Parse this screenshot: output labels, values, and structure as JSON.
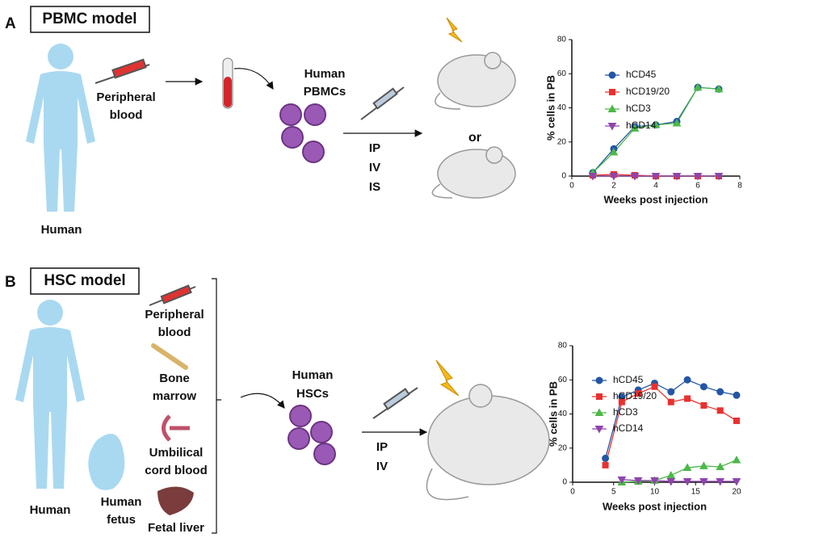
{
  "panel_a": {
    "letter": "A",
    "title": "PBMC model",
    "source": [
      "Peripheral",
      "blood"
    ],
    "donor": "Human",
    "cells": [
      "Human",
      "PBMCs"
    ],
    "routes": [
      "IP",
      "IV",
      "IS"
    ],
    "or": "or"
  },
  "panel_b": {
    "letter": "B",
    "title": "HSC model",
    "sources": [
      [
        "Peripheral",
        "blood"
      ],
      [
        "Bone",
        "marrow"
      ],
      [
        "Umbilical",
        "cord blood"
      ],
      [
        "Fetal liver"
      ]
    ],
    "donor": "Human",
    "fetus": [
      "Human",
      "fetus"
    ],
    "cells": [
      "Human",
      "HSCs"
    ],
    "routes": [
      "IP",
      "IV"
    ]
  },
  "chart_data": [
    {
      "type": "line",
      "xlabel": "Weeks post injection",
      "ylabel": "% cells in PB",
      "x": [
        1,
        2,
        3,
        4,
        5,
        6,
        7
      ],
      "xlim": [
        0,
        8
      ],
      "xticks": [
        0,
        2,
        4,
        6,
        8
      ],
      "ylim": [
        0,
        80
      ],
      "yticks": [
        0,
        20,
        40,
        60,
        80
      ],
      "series": [
        {
          "name": "hCD45",
          "color": "#2456a4",
          "marker": "circle",
          "values": [
            2,
            16,
            29,
            30,
            32,
            52,
            51
          ]
        },
        {
          "name": "hCD19/20",
          "color": "#e8312f",
          "marker": "square",
          "values": [
            0.5,
            1,
            0.5,
            0,
            0,
            0,
            0
          ]
        },
        {
          "name": "hCD3",
          "color": "#4cb848",
          "marker": "triangle",
          "values": [
            2,
            14,
            28,
            30,
            31,
            52,
            51
          ]
        },
        {
          "name": "hCD14",
          "color": "#8e44ad",
          "marker": "triangle-down",
          "values": [
            0,
            0,
            0,
            0,
            0,
            0,
            0
          ]
        }
      ]
    },
    {
      "type": "line",
      "xlabel": "Weeks post injection",
      "ylabel": "% cells in PB",
      "x": [
        4,
        6,
        8,
        10,
        12,
        14,
        16,
        18,
        20
      ],
      "xlim": [
        0,
        20
      ],
      "xticks": [
        0,
        5,
        10,
        15,
        20
      ],
      "ylim": [
        0,
        80
      ],
      "yticks": [
        0,
        20,
        40,
        60,
        80
      ],
      "series": [
        {
          "name": "hCD45",
          "color": "#2456a4",
          "marker": "circle",
          "values": [
            14,
            50,
            54,
            58,
            53,
            60,
            56,
            53,
            51
          ]
        },
        {
          "name": "hCD19/20",
          "color": "#e8312f",
          "marker": "square",
          "values": [
            10,
            47,
            52,
            56,
            47,
            49,
            45,
            42,
            36
          ]
        },
        {
          "name": "hCD3",
          "color": "#4cb848",
          "marker": "triangle",
          "values": [
            null,
            0,
            0.5,
            1,
            4,
            8.5,
            9.5,
            9,
            13
          ]
        },
        {
          "name": "hCD14",
          "color": "#8e44ad",
          "marker": "triangle-down",
          "values": [
            null,
            1.5,
            1,
            1,
            0.5,
            0.5,
            0.5,
            0.5,
            0.5
          ]
        }
      ]
    }
  ]
}
